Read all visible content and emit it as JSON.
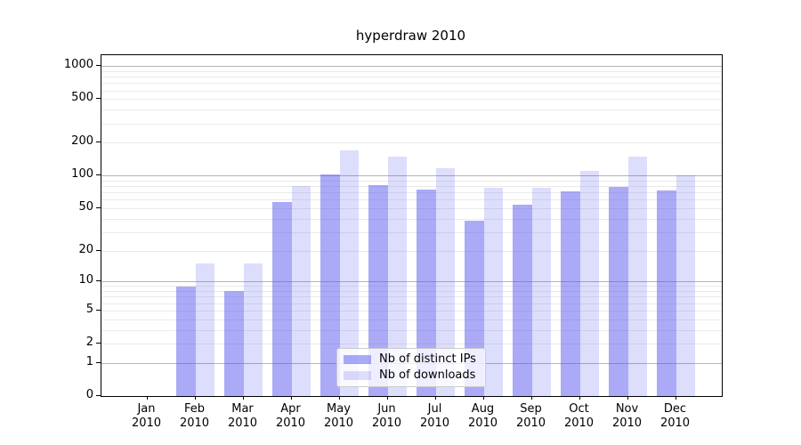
{
  "title": "hyperdraw 2010",
  "chart_data": {
    "type": "bar",
    "title": "hyperdraw 2010",
    "scale": "log1p",
    "grid": true,
    "legend_position": "lower center",
    "categories": [
      "Jan",
      "Feb",
      "Mar",
      "Apr",
      "May",
      "Jun",
      "Jul",
      "Aug",
      "Sep",
      "Oct",
      "Nov",
      "Dec"
    ],
    "category_year": "2010",
    "series": [
      {
        "name": "Nb of distinct IPs",
        "color": "rgba(85,85,240,0.5)",
        "values": [
          0,
          9,
          8,
          57,
          103,
          82,
          74,
          38,
          54,
          72,
          79,
          73
        ]
      },
      {
        "name": "Nb of downloads",
        "color": "rgba(85,85,240,0.2)",
        "values": [
          0,
          15,
          15,
          80,
          170,
          150,
          118,
          78,
          78,
          110,
          150,
          100
        ]
      }
    ],
    "yticks": [
      0,
      1,
      2,
      5,
      10,
      20,
      50,
      100,
      200,
      500,
      1000
    ],
    "ylim": [
      0,
      1000
    ],
    "xlabel": "",
    "ylabel": ""
  },
  "colors": {
    "bar_dark": "rgba(85,85,240,0.5)",
    "bar_light": "rgba(85,85,240,0.2)",
    "grid_major": "#b3b3b3",
    "grid_minor": "#eaeaea",
    "axis_frame": "#000000",
    "legend_border": "#cccccc"
  }
}
